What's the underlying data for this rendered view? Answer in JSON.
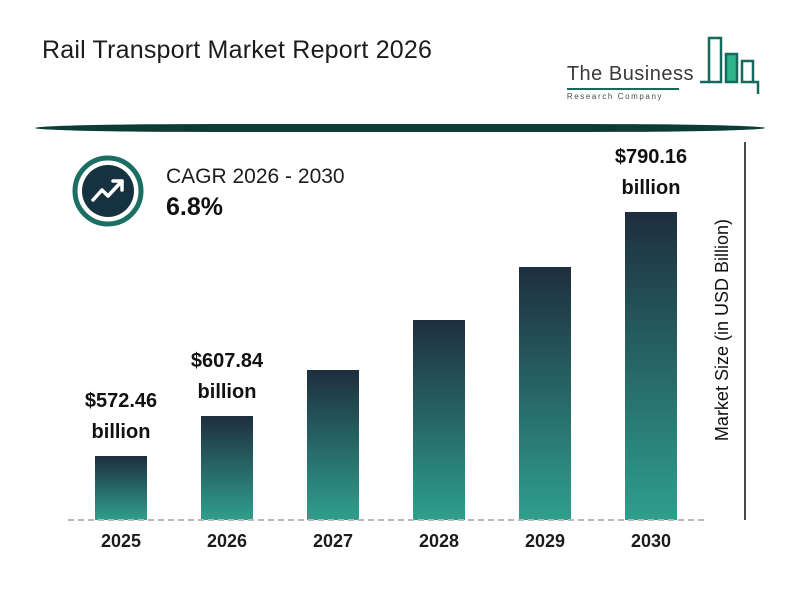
{
  "title": "Rail Transport Market Report 2026",
  "logo": {
    "line1": "The Business",
    "line2": "Research Company"
  },
  "cagr": {
    "label": "CAGR 2026 - 2030",
    "value": "6.8%"
  },
  "y_axis_label": "Market Size (in USD Billion)",
  "chart_data": {
    "type": "bar",
    "title": "Rail Transport Market Report 2026",
    "categories": [
      "2025",
      "2026",
      "2027",
      "2028",
      "2029",
      "2030"
    ],
    "values": [
      572.46,
      607.84,
      649.17,
      693.31,
      740.46,
      790.16
    ],
    "labels": [
      "$572.46 billion",
      "$607.84 billion",
      null,
      null,
      null,
      "$790.16 billion"
    ],
    "xlabel": "",
    "ylabel": "Market Size (in USD Billion)",
    "cagr_annotation": "CAGR 2026 - 2030 : 6.8%",
    "legend": "none",
    "grid": "dashed baseline only",
    "colors": {
      "bar_gradient_top": "#1e2e3d",
      "bar_gradient_bottom": "#2f9f8d",
      "divider": "#0d3c35",
      "accent_teal": "#16695c"
    }
  }
}
